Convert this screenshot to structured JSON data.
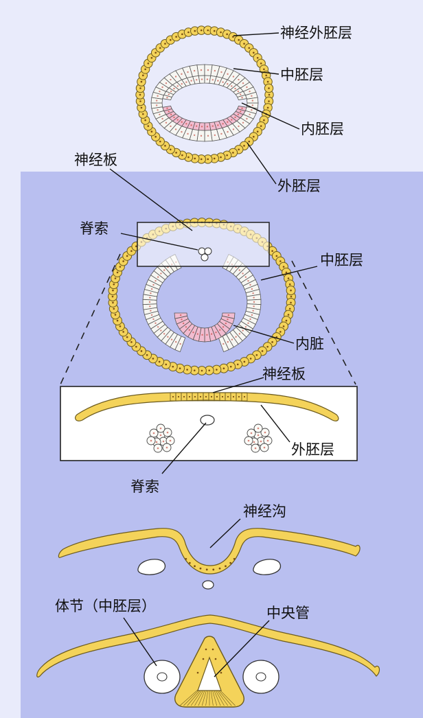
{
  "labels": {
    "neural_ectoderm": "神经外胚层",
    "mesoderm_1": "中胚层",
    "endoderm": "内胚层",
    "ectoderm_1": "外胚层",
    "neural_plate_1": "神经板",
    "notochord_1": "脊索",
    "mesoderm_2": "中胚层",
    "viscera": "内脏",
    "neural_plate_2": "神经板",
    "ectoderm_2": "外胚层",
    "notochord_2": "脊索",
    "neural_groove": "神经沟",
    "somite": "体节（中胚层）",
    "central_canal": "中央管"
  },
  "colors": {
    "background_panel": "#b9bff0",
    "yellow_cell": "#f4d35a",
    "cell_outline": "#6b5a1e",
    "light_cell": "#f6f6f2",
    "pink_cell": "#f2bcd0"
  }
}
